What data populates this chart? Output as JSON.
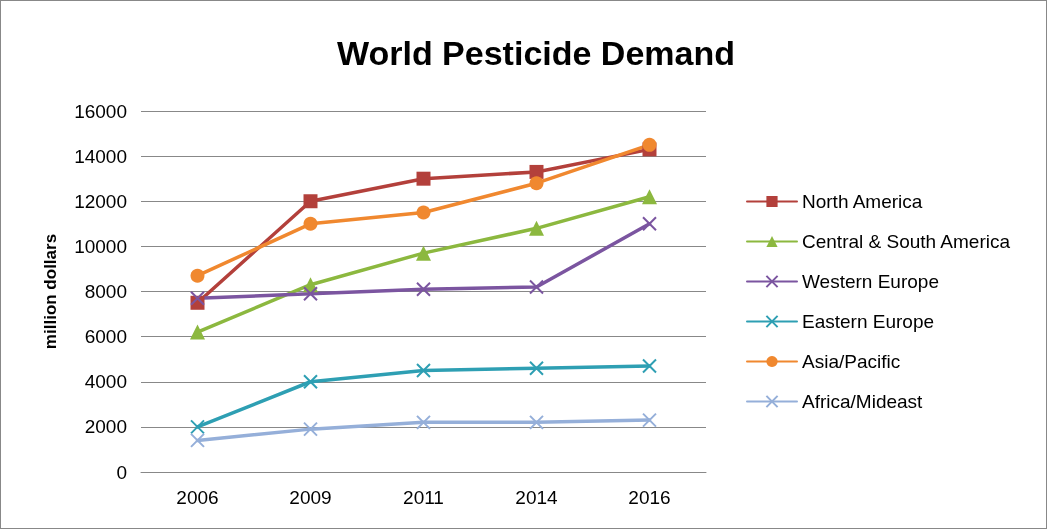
{
  "chart_data": {
    "type": "line",
    "title": "World Pesticide Demand",
    "ylabel": "million dollars",
    "categories": [
      "2006",
      "2009",
      "2011",
      "2014",
      "2016"
    ],
    "series": [
      {
        "name": "North America",
        "color": "#b3403b",
        "marker": "square",
        "values": [
          7500,
          12000,
          13000,
          13300,
          14300
        ]
      },
      {
        "name": "Central & South America",
        "color": "#8cb83f",
        "marker": "triangle",
        "values": [
          6200,
          8300,
          9700,
          10800,
          12200
        ]
      },
      {
        "name": "Western Europe",
        "color": "#7b55a0",
        "marker": "cross",
        "values": [
          7700,
          7900,
          8100,
          8200,
          11000
        ]
      },
      {
        "name": "Eastern Europe",
        "color": "#2e9fb3",
        "marker": "cross",
        "values": [
          2000,
          4000,
          4500,
          4600,
          4700
        ]
      },
      {
        "name": "Asia/Pacific",
        "color": "#f0882f",
        "marker": "circle",
        "values": [
          8700,
          11000,
          11500,
          12800,
          14500
        ]
      },
      {
        "name": "Africa/Mideast",
        "color": "#95afd9",
        "marker": "cross",
        "values": [
          1400,
          1900,
          2200,
          2200,
          2300
        ]
      }
    ],
    "ylim": [
      0,
      16000
    ],
    "yticks": [
      0,
      2000,
      4000,
      6000,
      8000,
      10000,
      12000,
      14000,
      16000
    ],
    "grid": "y",
    "legend": "right",
    "line_style": "solid"
  }
}
